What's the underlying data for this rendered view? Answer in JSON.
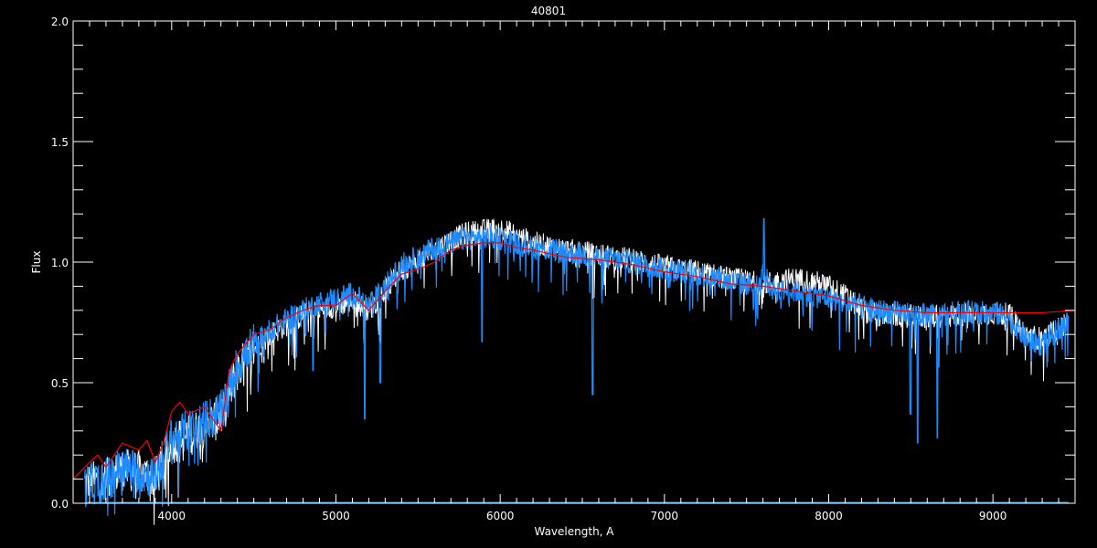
{
  "chart_data": {
    "type": "line",
    "title": "40801",
    "xlabel": "Wavelength, A",
    "ylabel": "Flux",
    "xlim": [
      3400,
      9500
    ],
    "ylim": [
      0,
      2.0
    ],
    "x_ticks": [
      4000,
      5000,
      6000,
      7000,
      8000,
      9000
    ],
    "x_tick_labels": [
      "4000",
      "5000",
      "6000",
      "7000",
      "8000",
      "9000"
    ],
    "y_ticks": [
      0,
      0.5,
      1.0,
      1.5,
      2.0
    ],
    "y_tick_labels": [
      "0.0",
      "0.5",
      "1.0",
      "1.5",
      "2.0"
    ],
    "grid": false,
    "background": "#000000",
    "series": [
      {
        "color": "#ffffff",
        "x": [
          3470,
          3600,
          3700,
          3800,
          3900,
          4000,
          4100,
          4200,
          4300,
          4400,
          4500,
          4600,
          4700,
          4800,
          4900,
          5000,
          5100,
          5200,
          5300,
          5400,
          5500,
          5600,
          5700,
          5800,
          5900,
          6000,
          6100,
          6200,
          6400,
          6600,
          6800,
          7000,
          7200,
          7400,
          7600,
          7700,
          7800,
          7900,
          8000,
          8100,
          8200,
          8300,
          8400,
          8600,
          8800,
          9000,
          9100,
          9200,
          9300,
          9460
        ],
        "y": [
          0.08,
          0.1,
          0.14,
          0.13,
          0.1,
          0.25,
          0.28,
          0.32,
          0.36,
          0.55,
          0.64,
          0.7,
          0.74,
          0.78,
          0.8,
          0.82,
          0.84,
          0.8,
          0.88,
          0.97,
          1.0,
          1.05,
          1.09,
          1.12,
          1.13,
          1.14,
          1.11,
          1.08,
          1.05,
          1.03,
          1.01,
          0.98,
          0.96,
          0.93,
          0.91,
          0.92,
          0.93,
          0.92,
          0.9,
          0.86,
          0.8,
          0.78,
          0.78,
          0.77,
          0.78,
          0.79,
          0.78,
          0.7,
          0.68,
          0.75
        ]
      },
      {
        "color": "#1e8cff",
        "x": [
          3470,
          3600,
          3700,
          3800,
          3900,
          4000,
          4100,
          4200,
          4300,
          4400,
          4500,
          4600,
          4700,
          4800,
          4900,
          5000,
          5100,
          5200,
          5300,
          5400,
          5500,
          5600,
          5700,
          5800,
          5900,
          6000,
          6100,
          6200,
          6400,
          6600,
          6800,
          7000,
          7200,
          7400,
          7600,
          7700,
          7800,
          7900,
          8000,
          8100,
          8200,
          8300,
          8400,
          8600,
          8800,
          9000,
          9100,
          9200,
          9300,
          9460
        ],
        "y": [
          0.07,
          0.1,
          0.15,
          0.13,
          0.11,
          0.27,
          0.3,
          0.34,
          0.38,
          0.57,
          0.66,
          0.72,
          0.76,
          0.8,
          0.83,
          0.85,
          0.87,
          0.82,
          0.9,
          0.99,
          1.02,
          1.06,
          1.08,
          1.1,
          1.1,
          1.1,
          1.08,
          1.06,
          1.04,
          1.02,
          1.0,
          0.97,
          0.95,
          0.92,
          0.9,
          0.88,
          0.88,
          0.86,
          0.85,
          0.83,
          0.82,
          0.8,
          0.79,
          0.78,
          0.79,
          0.79,
          0.77,
          0.68,
          0.66,
          0.76
        ],
        "absorption_lines": [
          [
            4861,
            0.55
          ],
          [
            5175,
            0.35
          ],
          [
            5270,
            0.5
          ],
          [
            5890,
            0.67
          ],
          [
            6563,
            0.45
          ],
          [
            8498,
            0.37
          ],
          [
            8542,
            0.25
          ],
          [
            8662,
            0.27
          ]
        ],
        "emission_lines": [
          [
            7605,
            1.18
          ]
        ]
      },
      {
        "color": "#ff0000",
        "x": [
          3400,
          3500,
          3550,
          3600,
          3700,
          3800,
          3850,
          3900,
          3950,
          4000,
          4050,
          4100,
          4200,
          4300,
          4350,
          4400,
          4500,
          4600,
          4700,
          4800,
          4900,
          5000,
          5100,
          5200,
          5300,
          5400,
          5500,
          5600,
          5700,
          5800,
          5900,
          6000,
          6100,
          6200,
          6400,
          6600,
          6800,
          7000,
          7200,
          7400,
          7600,
          7800,
          8000,
          8200,
          8400,
          8600,
          8800,
          9000,
          9200,
          9300,
          9500
        ],
        "y": [
          0.1,
          0.17,
          0.2,
          0.15,
          0.25,
          0.22,
          0.26,
          0.17,
          0.25,
          0.38,
          0.42,
          0.37,
          0.4,
          0.3,
          0.55,
          0.62,
          0.7,
          0.72,
          0.77,
          0.8,
          0.82,
          0.82,
          0.87,
          0.8,
          0.88,
          0.95,
          0.97,
          1.0,
          1.05,
          1.07,
          1.08,
          1.08,
          1.06,
          1.05,
          1.02,
          1.01,
          0.99,
          0.96,
          0.94,
          0.91,
          0.9,
          0.88,
          0.86,
          0.82,
          0.8,
          0.79,
          0.79,
          0.79,
          0.79,
          0.79,
          0.8
        ]
      }
    ]
  }
}
